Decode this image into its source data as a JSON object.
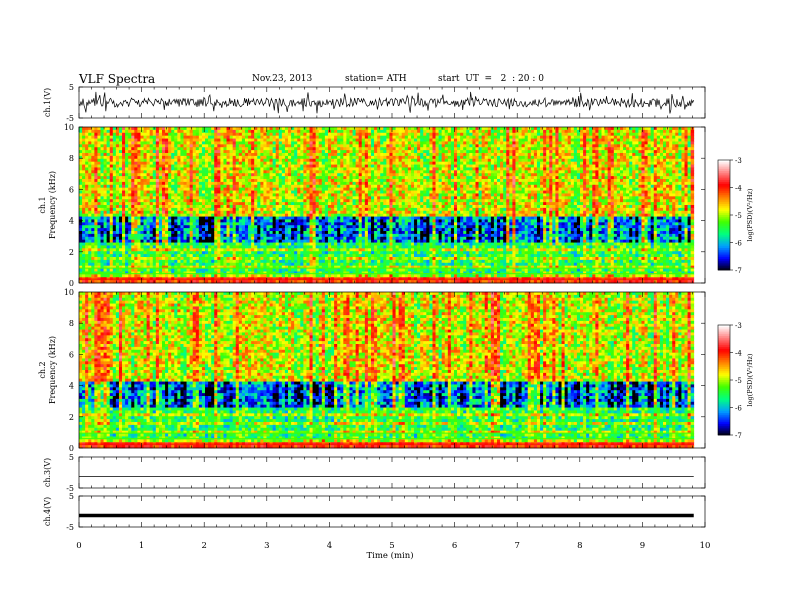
{
  "header": {
    "title": "VLF  Spectra",
    "date": "Nov.23, 2013",
    "station": "station= ATH",
    "start": "start  UT  =   2  : 20 : 0"
  },
  "chart_data": [
    {
      "type": "line",
      "name": "ch1-waveform",
      "ylabel": "ch.1(V)",
      "ylim": [
        -5,
        5
      ],
      "yticks": [
        "5",
        "-5"
      ],
      "xlim": [
        0,
        10
      ]
    },
    {
      "type": "heatmap",
      "name": "ch1-spectrogram",
      "ylabel": "ch.1\nFrequency  (kHz)",
      "ylim": [
        0,
        10
      ],
      "yticks": [
        "10",
        "8",
        "6",
        "4",
        "2",
        "0"
      ],
      "xlim": [
        0,
        10
      ],
      "colorbar": {
        "label": "log(PSD)(V²/Hz)",
        "range": [
          -7,
          -3
        ],
        "ticks": [
          "-3",
          "-4",
          "-5",
          "-6",
          "-7"
        ],
        "colors": [
          "#000000",
          "#0000ff",
          "#00a0ff",
          "#00ff80",
          "#40ff00",
          "#ffff00",
          "#ff8000",
          "#ff0000",
          "#ff8080",
          "#ffffff"
        ]
      }
    },
    {
      "type": "heatmap",
      "name": "ch2-spectrogram",
      "ylabel": "ch.2\nFrequency  (kHz)",
      "ylim": [
        0,
        10
      ],
      "yticks": [
        "10",
        "8",
        "6",
        "4",
        "2",
        "0"
      ],
      "xlim": [
        0,
        10
      ],
      "colorbar": {
        "label": "log(PSD)(V²/Hz)",
        "range": [
          -7,
          -3
        ],
        "ticks": [
          "-3",
          "-4",
          "-5",
          "-6",
          "-7"
        ]
      }
    },
    {
      "type": "line",
      "name": "ch3-waveform",
      "ylabel": "ch.3(V)",
      "ylim": [
        -5,
        5
      ],
      "yticks": [
        "5",
        "-5"
      ],
      "xlim": [
        0,
        10
      ]
    },
    {
      "type": "line",
      "name": "ch4-waveform",
      "ylabel": "ch.4(V)",
      "ylim": [
        -5,
        5
      ],
      "yticks": [
        "5",
        "-5"
      ],
      "xlim": [
        0,
        10
      ]
    }
  ],
  "xaxis": {
    "label": "Time  (min)",
    "ticks": [
      "0",
      "1",
      "2",
      "3",
      "4",
      "5",
      "6",
      "7",
      "8",
      "9",
      "10"
    ],
    "data_end": 9.82
  }
}
